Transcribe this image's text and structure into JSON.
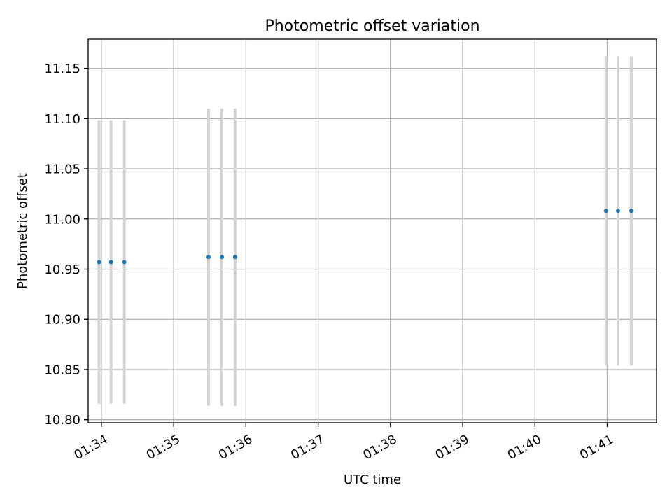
{
  "chart_data": {
    "type": "scatter",
    "title": "Photometric offset variation",
    "xlabel": "UTC time",
    "ylabel": "Photometric offset",
    "xlim": [
      "01:33:49",
      "01:41:41"
    ],
    "ylim": [
      10.797,
      11.179
    ],
    "grid": true,
    "x_ticks": [
      "01:34",
      "01:35",
      "01:36",
      "01:37",
      "01:38",
      "01:39",
      "01:40",
      "01:41"
    ],
    "y_ticks": [
      "10.80",
      "10.85",
      "10.90",
      "10.95",
      "11.00",
      "11.05",
      "11.10",
      "11.15"
    ],
    "series": [
      {
        "x": [
          "01:33:58",
          "01:34:08",
          "01:34:19",
          "01:35:29",
          "01:35:40",
          "01:35:51",
          "01:40:59",
          "01:41:09",
          "01:41:20"
        ],
        "y": [
          10.957,
          10.957,
          10.957,
          10.962,
          10.962,
          10.962,
          11.008,
          11.008,
          11.008
        ],
        "yerr": [
          0.141,
          0.141,
          0.141,
          0.148,
          0.148,
          0.148,
          0.154,
          0.154,
          0.154
        ]
      }
    ],
    "colors": {
      "points": "#1f77b4",
      "errorbars": "#d3d3d3",
      "grid": "#b0b0b0",
      "axes": "#000000"
    }
  }
}
